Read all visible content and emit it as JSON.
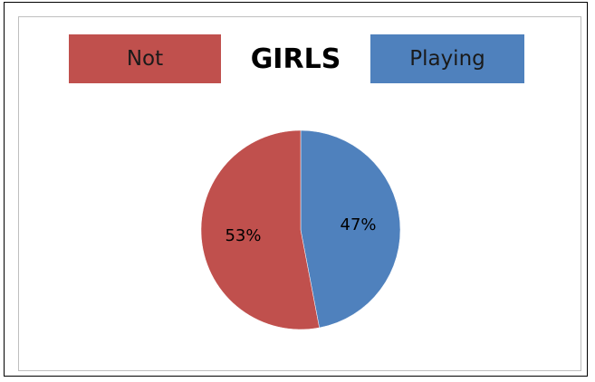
{
  "chart_data": {
    "type": "pie",
    "title": "GIRLS",
    "categories": [
      "Not",
      "Playing"
    ],
    "values": [
      53,
      47
    ],
    "labels": [
      "53%",
      "47%"
    ],
    "colors": [
      "#c0504d",
      "#4f81bd"
    ],
    "legend_placement": "top"
  }
}
